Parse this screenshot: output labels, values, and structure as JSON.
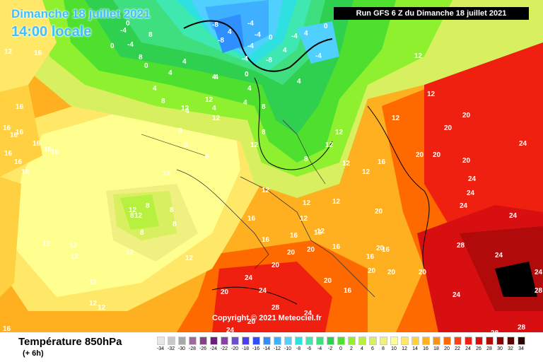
{
  "header": {
    "date_line": "Dimanche 18 juillet 2021",
    "time_line": "14:00 locale",
    "run_info": "Run GFS 6 Z du Dimanche 18 juillet 2021"
  },
  "copyright": "Copyright © 2021 Meteociel.fr",
  "footer": {
    "variable": "Température 850hPa",
    "offset": "(+ 6h)"
  },
  "legend": {
    "ticks": [
      "-34",
      "-32",
      "-30",
      "-28",
      "-26",
      "-24",
      "-22",
      "-20",
      "-18",
      "-16",
      "-14",
      "-12",
      "-10",
      "-8",
      "-6",
      "-4",
      "-2",
      "0",
      "2",
      "4",
      "6",
      "8",
      "10",
      "12",
      "14",
      "16",
      "18",
      "20",
      "22",
      "24",
      "26",
      "28",
      "30",
      "32",
      "34"
    ],
    "colors": [
      "#e6e6e6",
      "#c8c8c8",
      "#a8a8a8",
      "#9a6a9a",
      "#8a3f8a",
      "#6a1f7a",
      "#8a3faa",
      "#6a4fc8",
      "#4a3ff0",
      "#2f4fff",
      "#2f8fff",
      "#3fb0ff",
      "#4fd0ff",
      "#2fe0e0",
      "#3fe8b0",
      "#3fdf7f",
      "#2fd04f",
      "#4fe02f",
      "#8ff02f",
      "#b8f040",
      "#d8f060",
      "#f0f080",
      "#ffff90",
      "#ffe868",
      "#ffd040",
      "#ffb020",
      "#ff9010",
      "#ff6a00",
      "#ff4010",
      "#f02010",
      "#d80f10",
      "#b00a0a",
      "#8a0505",
      "#5a0000",
      "#2a0000"
    ]
  },
  "map": {
    "labels_negative": [
      "-8",
      "-4",
      "-4",
      "-4",
      "-4",
      "-4",
      "-4",
      "-4",
      "-4",
      "-8",
      "-8",
      "-4"
    ],
    "labels_zero": [
      "0",
      "0",
      "0",
      "0",
      "0",
      "0"
    ],
    "labels_4": [
      "4",
      "4",
      "4",
      "4",
      "4",
      "4",
      "4",
      "4",
      "4",
      "4",
      "4",
      "4"
    ],
    "labels_8": [
      "8",
      "8",
      "8",
      "8",
      "8",
      "8",
      "8",
      "8",
      "8",
      "8",
      "8",
      "8",
      "8",
      "8"
    ],
    "labels_12": [
      "12",
      "12",
      "12",
      "12",
      "12",
      "12",
      "12",
      "12",
      "12",
      "12",
      "12",
      "12",
      "12",
      "12",
      "12",
      "12",
      "12",
      "12",
      "12",
      "12",
      "12",
      "12",
      "12",
      "12",
      "12",
      "12",
      "12",
      "12"
    ],
    "labels_16": [
      "16",
      "16",
      "16",
      "16",
      "16",
      "16",
      "16",
      "16",
      "16",
      "16",
      "16",
      "16",
      "16",
      "16",
      "16",
      "16",
      "16",
      "16",
      "16",
      "16",
      "16"
    ],
    "labels_20": [
      "20",
      "20",
      "20",
      "20",
      "20",
      "20",
      "20",
      "20",
      "20",
      "20",
      "20",
      "20",
      "20",
      "20",
      "20",
      "20"
    ],
    "labels_24": [
      "24",
      "24",
      "24",
      "24",
      "24",
      "24",
      "24",
      "24",
      "24",
      "24",
      "24",
      "24"
    ],
    "labels_28": [
      "28",
      "28",
      "28",
      "28",
      "28"
    ]
  }
}
